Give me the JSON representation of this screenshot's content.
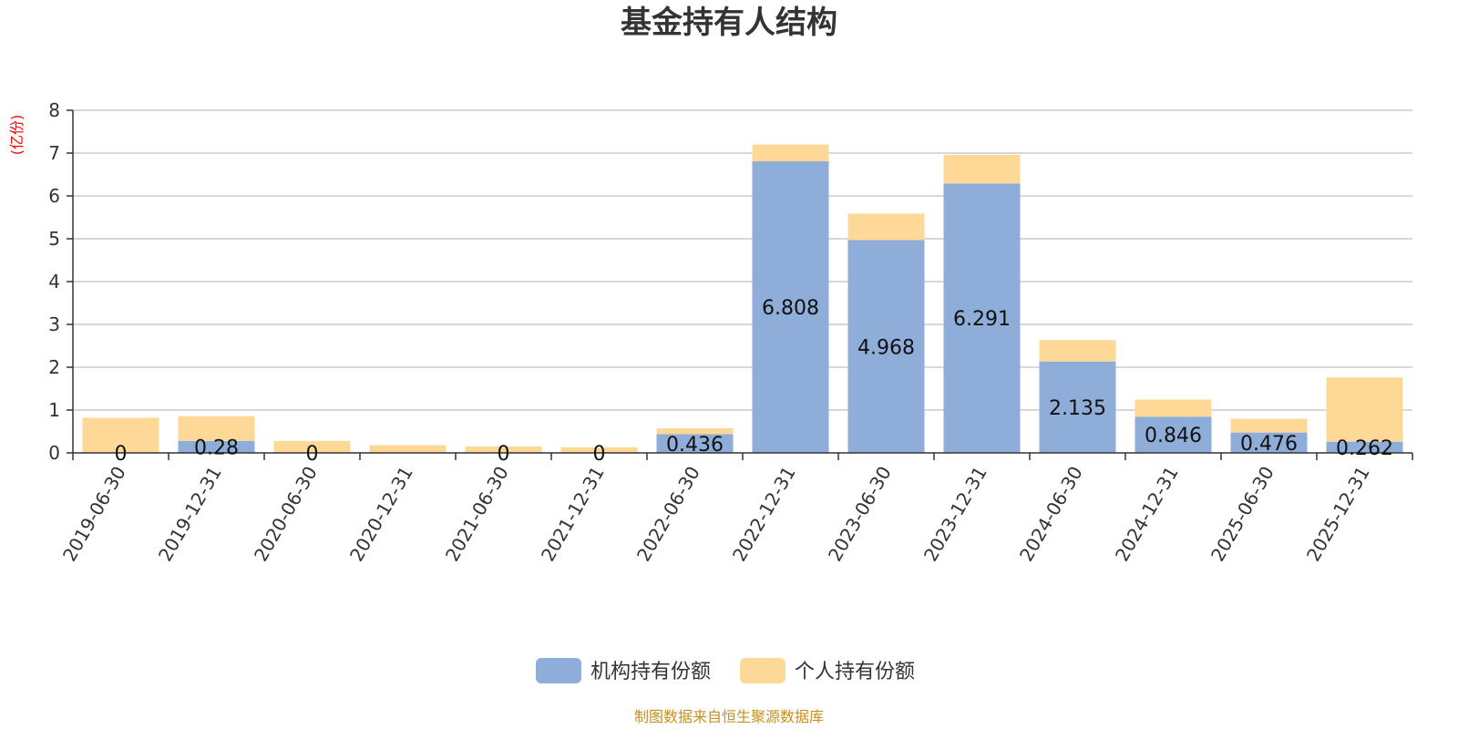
{
  "chart_data": {
    "type": "bar",
    "stacked": true,
    "title": "基金持有人结构",
    "unit": "(亿份)",
    "categories": [
      "2019-06-30",
      "2019-12-31",
      "2020-06-30",
      "2020-12-31",
      "2021-06-30",
      "2021-12-31",
      "2022-06-30",
      "2022-12-31",
      "2023-06-30",
      "2023-12-31",
      "2024-06-30",
      "2024-12-31",
      "2025-06-30",
      "2025-12-31"
    ],
    "series": [
      {
        "name": "机构持有份额",
        "color": "#8eadd9",
        "values": [
          0,
          0.28,
          0,
          0,
          0,
          0,
          0.436,
          6.808,
          4.968,
          6.291,
          2.135,
          0.846,
          0.476,
          0.262
        ],
        "labels": [
          "0",
          "0.28",
          "0",
          "",
          "0",
          "0",
          "0.436",
          "6.808",
          "4.968",
          "6.291",
          "2.135",
          "0.846",
          "0.476",
          "0.262"
        ]
      },
      {
        "name": "个人持有份额",
        "color": "#fdd897",
        "values": [
          0.82,
          0.58,
          0.28,
          0.18,
          0.15,
          0.13,
          0.14,
          0.39,
          0.62,
          0.67,
          0.5,
          0.4,
          0.32,
          1.5
        ]
      }
    ],
    "ylim": [
      0,
      8
    ],
    "yticks": [
      0,
      1,
      2,
      3,
      4,
      5,
      6,
      7,
      8
    ],
    "grid": true,
    "legend_position": "bottom-center"
  },
  "source_text": "制图数据来自恒生聚源数据库",
  "colors": {
    "title": "#333333",
    "unit": "#ff0000",
    "source": "#c8901e",
    "grid": "#cccccc",
    "axis": "#333333"
  }
}
